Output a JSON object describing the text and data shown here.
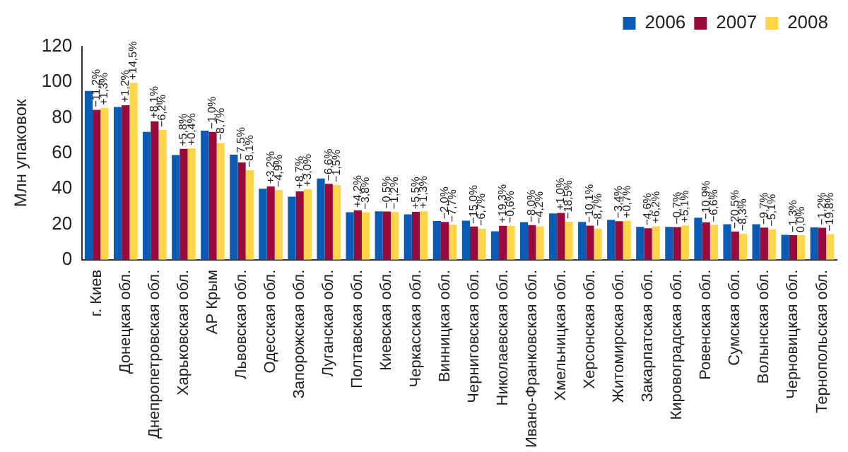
{
  "chart_data": {
    "type": "bar",
    "ylabel": "Млн упаковок",
    "categories": [
      "г. Киев",
      "Донецкая обл.",
      "Днепропетровская обл.",
      "Харьковская обл.",
      "АР Крым",
      "Львовская обл.",
      "Одесская обл.",
      "Запорожская обл.",
      "Луганская обл.",
      "Полтавская обл.",
      "Киевская обл.",
      "Черкасская обл.",
      "Винницкая обл.",
      "Черниговская обл.",
      "Николаевская обл.",
      "Ивано-Франковская обл.",
      "Хмельницкая обл.",
      "Херсонская обл.",
      "Житомирская обл.",
      "Закарпатская обл.",
      "Кировоградская обл.",
      "Ровенская обл.",
      "Сумская обл.",
      "Волынская обл.",
      "Черновицкая обл.",
      "Тернопольская обл."
    ],
    "series": [
      {
        "name": "2006",
        "color": "#0a5bb4",
        "values": [
          95,
          86,
          72,
          59,
          72.7,
          59.2,
          40,
          35.5,
          45.7,
          26.7,
          27.2,
          25.5,
          21.8,
          22,
          16,
          21.2,
          26,
          21.3,
          22.5,
          18.5,
          18.5,
          23.7,
          20,
          20,
          14,
          18.2
        ]
      },
      {
        "name": "2007",
        "color": "#9b0a3c",
        "values": [
          84.4,
          87,
          77.9,
          62.4,
          72,
          54.8,
          41.3,
          38.5,
          42.7,
          27.8,
          27.1,
          26.9,
          21.3,
          18.7,
          19.1,
          19.5,
          26.3,
          19.2,
          21.7,
          17.7,
          18.4,
          21.1,
          15.9,
          18.1,
          13.8,
          18
        ]
      },
      {
        "name": "2008",
        "color": "#ffd54a",
        "values": [
          85.5,
          99.6,
          73.1,
          62.7,
          65.7,
          50.4,
          39.3,
          39.7,
          42.1,
          26.7,
          26.8,
          27.3,
          19.7,
          17.5,
          19,
          18.7,
          21.4,
          17.5,
          21.9,
          18.8,
          19.3,
          19.7,
          14.6,
          17.2,
          13.8,
          14.4
        ]
      }
    ],
    "annotations": [
      {
        "text": "−11,2%",
        "x": "г. Киев",
        "y": 84.4
      },
      {
        "text": "+1,3%",
        "x": "г. Киев",
        "y": 85.5
      },
      {
        "text": "+1,2%",
        "x": "Донецкая обл.",
        "y": 87
      },
      {
        "text": "+14,5%",
        "x": "Донецкая обл.",
        "y": 99.6
      },
      {
        "text": "+8,1%",
        "x": "Днепропетровская обл.",
        "y": 77.9
      },
      {
        "text": "−6,2%",
        "x": "Днепропетровская обл.",
        "y": 73.1
      },
      {
        "text": "+5,8%",
        "x": "Харьковская обл.",
        "y": 62.4
      },
      {
        "text": "+0,4%",
        "x": "Харьковская обл.",
        "y": 62.7
      },
      {
        "text": "−1,0%",
        "x": "АР Крым",
        "y": 72
      },
      {
        "text": "−8,7%",
        "x": "АР Крым",
        "y": 65.7
      },
      {
        "text": "−7,5%",
        "x": "Львовская обл.",
        "y": 54.8
      },
      {
        "text": "−8,1%",
        "x": "Львовская обл.",
        "y": 50.4
      },
      {
        "text": "+3,2%",
        "x": "Одесская обл.",
        "y": 41.3
      },
      {
        "text": "−4,9%",
        "x": "Одесская обл.",
        "y": 39.3
      },
      {
        "text": "+8,7%",
        "x": "Запорожская обл.",
        "y": 38.5
      },
      {
        "text": "+3,0%",
        "x": "Запорожская обл.",
        "y": 39.7
      },
      {
        "text": "−6,6%",
        "x": "Луганская обл.",
        "y": 42.7
      },
      {
        "text": "−1,5%",
        "x": "Луганская обл.",
        "y": 42.1
      },
      {
        "text": "+4,2%",
        "x": "Полтавская обл.",
        "y": 27.8
      },
      {
        "text": "−3,8%",
        "x": "Полтавская обл.",
        "y": 26.7
      },
      {
        "text": "−0,5%",
        "x": "Киевская обл.",
        "y": 27.1
      },
      {
        "text": "−1,2%",
        "x": "Киевская обл.",
        "y": 26.8
      },
      {
        "text": "+5,5%",
        "x": "Черкасская обл.",
        "y": 26.9
      },
      {
        "text": "+1,3%",
        "x": "Черкасская обл.",
        "y": 27.3
      },
      {
        "text": "−2,0%",
        "x": "Винницкая обл.",
        "y": 21.3
      },
      {
        "text": "−7,7%",
        "x": "Винницкая обл.",
        "y": 19.7
      },
      {
        "text": "−15,0%",
        "x": "Черниговская обл.",
        "y": 18.7
      },
      {
        "text": "−6,7%",
        "x": "Черниговская обл.",
        "y": 17.5
      },
      {
        "text": "+19,3%",
        "x": "Николаевская обл.",
        "y": 19.1
      },
      {
        "text": "−0,6%",
        "x": "Николаевская обл.",
        "y": 19
      },
      {
        "text": "−8,0%",
        "x": "Ивано-Франковская обл.",
        "y": 19.5
      },
      {
        "text": "−4,2%",
        "x": "Ивано-Франковская обл.",
        "y": 18.7
      },
      {
        "text": "+1,0%",
        "x": "Хмельницкая обл.",
        "y": 26.3
      },
      {
        "text": "−18,5%",
        "x": "Хмельницкая обл.",
        "y": 21.4
      },
      {
        "text": "−10,1%",
        "x": "Херсонская обл.",
        "y": 19.2
      },
      {
        "text": "−8,7%",
        "x": "Херсонская обл.",
        "y": 17.5
      },
      {
        "text": "−3,4%",
        "x": "Житомирская обл.",
        "y": 21.7
      },
      {
        "text": "+0,7%",
        "x": "Житомирская обл.",
        "y": 21.9
      },
      {
        "text": "−4,6%",
        "x": "Закарпатская обл.",
        "y": 17.7
      },
      {
        "text": "+6,2%",
        "x": "Закарпатская обл.",
        "y": 18.8
      },
      {
        "text": "−0,7%",
        "x": "Кировоградская обл.",
        "y": 18.4
      },
      {
        "text": "+5,1%",
        "x": "Кировоградская обл.",
        "y": 19.3
      },
      {
        "text": "−10,9%",
        "x": "Ровенская обл.",
        "y": 21.1
      },
      {
        "text": "−6,6%",
        "x": "Ровенская обл.",
        "y": 19.7
      },
      {
        "text": "−20,5%",
        "x": "Сумская обл.",
        "y": 15.9
      },
      {
        "text": "−8,3%",
        "x": "Сумская обл.",
        "y": 14.6
      },
      {
        "text": "−9,7%",
        "x": "Волынская обл.",
        "y": 18.1
      },
      {
        "text": "−5,1%",
        "x": "Волынская обл.",
        "y": 17.2
      },
      {
        "text": "−1,3%",
        "x": "Черновицкая обл.",
        "y": 13.8
      },
      {
        "text": "0,0%",
        "x": "Черновицкая обл.",
        "y": 13.8
      },
      {
        "text": "−1,2%",
        "x": "Тернопольская обл.",
        "y": 18
      },
      {
        "text": "−19,8%",
        "x": "Тернопольская обл.",
        "y": 14.4
      }
    ],
    "ylim": [
      0,
      120
    ],
    "yticks": [
      0,
      20,
      40,
      60,
      80,
      100,
      120
    ],
    "grid": false,
    "legend": "top right"
  }
}
